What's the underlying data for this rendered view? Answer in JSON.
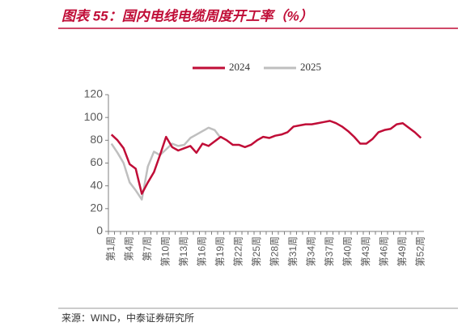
{
  "chart_data": {
    "type": "line",
    "title": "图表 55：国内电线电缆周度开工率（%）",
    "source": "来源：WIND，中泰证券研究所",
    "categories": [
      "第1周",
      null,
      null,
      "第4周",
      null,
      null,
      "第7周",
      null,
      null,
      "第10周",
      null,
      null,
      "第13周",
      null,
      null,
      "第16周",
      null,
      null,
      "第19周",
      null,
      null,
      "第22周",
      null,
      null,
      "第25周",
      null,
      null,
      "第28周",
      null,
      null,
      "第31周",
      null,
      null,
      "第34周",
      null,
      null,
      "第37周",
      null,
      null,
      "第40周",
      null,
      null,
      "第43周",
      null,
      null,
      "第46周",
      null,
      null,
      "第49周",
      null,
      null,
      "第52周"
    ],
    "series": [
      {
        "name": "2024",
        "color": "#c00d37",
        "values": [
          85,
          80,
          73,
          59,
          55,
          33,
          43,
          52,
          67,
          83,
          74,
          71,
          73,
          75,
          69,
          77,
          75,
          79,
          83,
          80,
          76,
          76,
          74,
          76,
          80,
          83,
          82,
          84,
          85,
          87,
          92,
          93,
          94,
          94,
          95,
          96,
          97,
          95,
          92,
          88,
          83,
          77,
          77,
          81,
          87,
          89,
          90,
          94,
          95,
          91,
          87,
          82
        ]
      },
      {
        "name": "2025",
        "color": "#bfbfbf",
        "values": [
          77,
          69,
          60,
          43,
          36,
          28,
          57,
          70,
          67,
          72,
          77,
          75,
          76,
          82,
          85,
          88,
          91,
          89,
          82,
          null,
          null,
          null,
          null,
          null,
          null,
          null,
          null,
          null,
          null,
          null,
          null,
          null,
          null,
          null,
          null,
          null,
          null,
          null,
          null,
          null,
          null,
          null,
          null,
          null,
          null,
          null,
          null,
          null,
          null,
          null,
          null,
          null
        ]
      }
    ],
    "ylim": [
      0,
      120
    ],
    "yticks": [
      0,
      20,
      40,
      60,
      80,
      100,
      120
    ],
    "legend": "top"
  }
}
